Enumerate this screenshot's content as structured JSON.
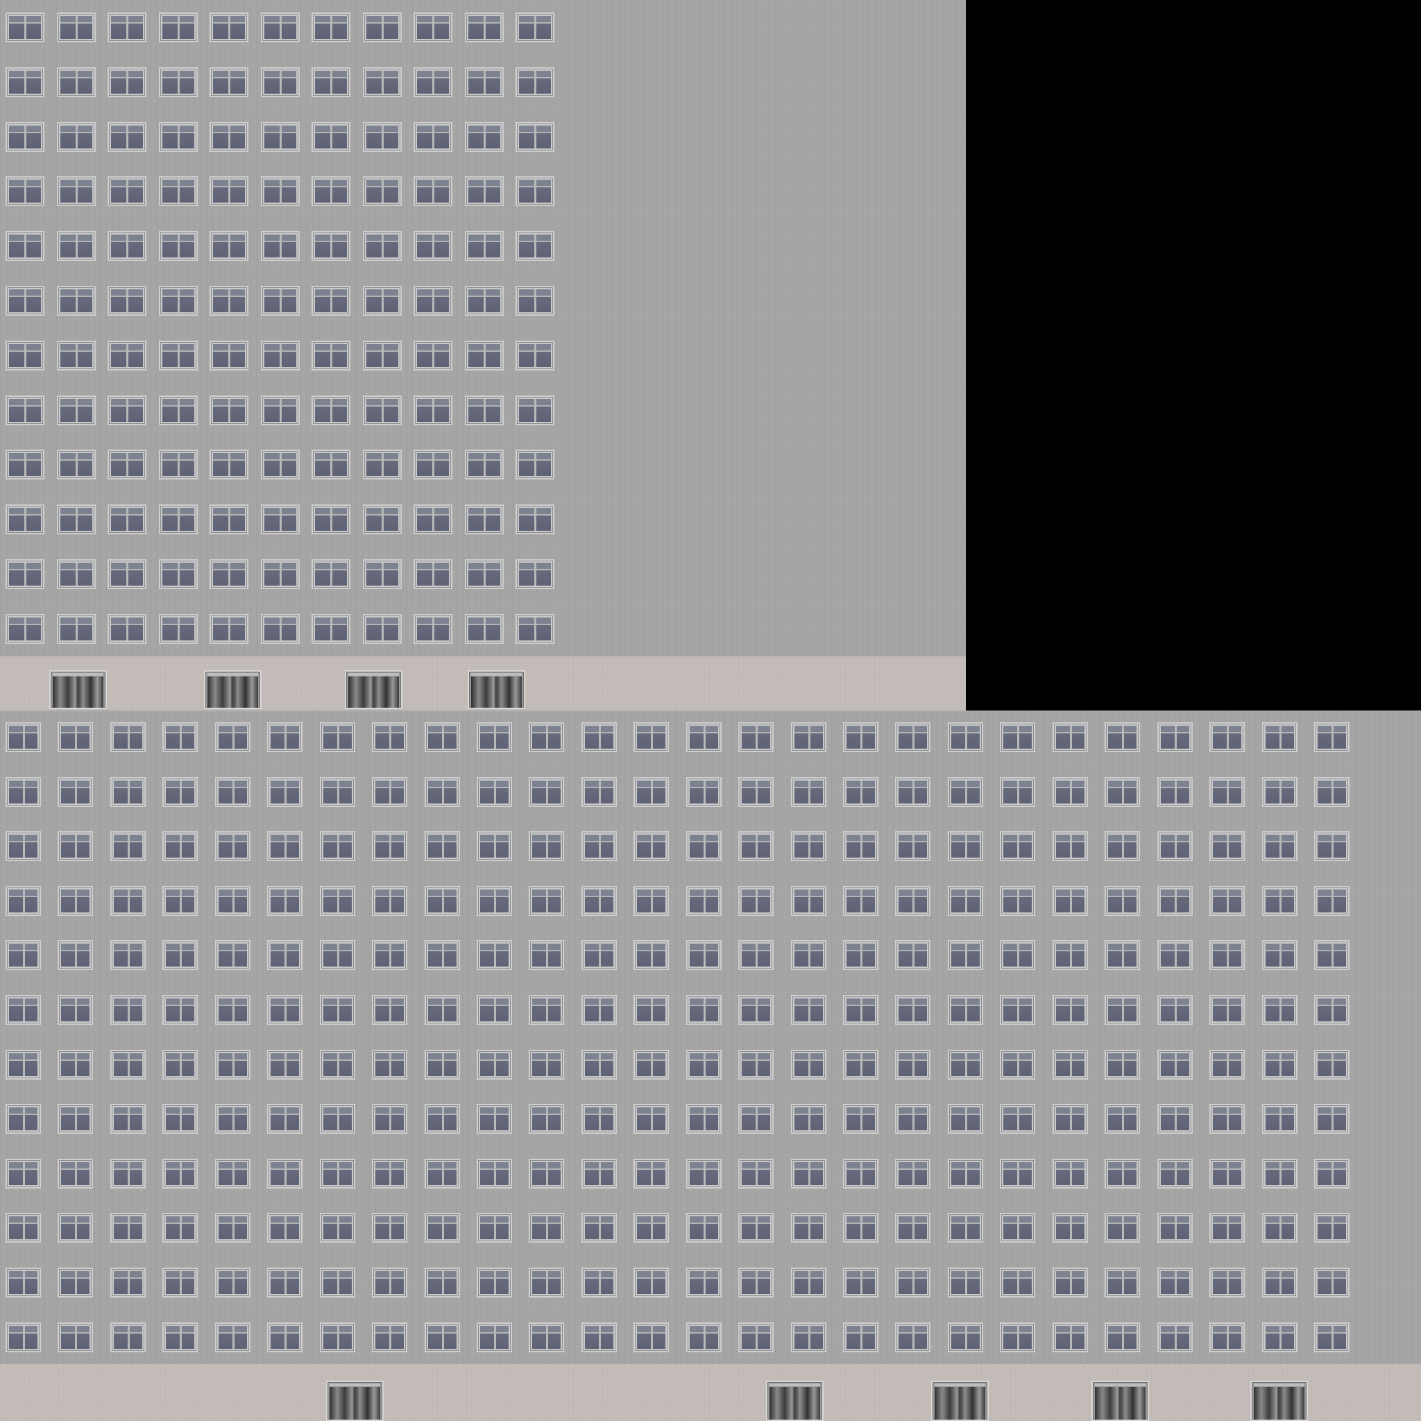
{
  "scene": {
    "subject": "",
    "colors": {
      "background": "#000000",
      "wall": "#a5a5a5",
      "ground_floor": "#c3bbb7",
      "window_glass": "#646879",
      "window_frame": "#cfcfcf"
    }
  },
  "upper_facade": {
    "window_rows": 12,
    "window_columns": 11
  },
  "upper_ground_floor": {
    "door_count": 4
  },
  "lower_facade": {
    "window_rows": 12,
    "window_columns": 26
  },
  "lower_ground_floor": {
    "door_count": 5
  }
}
